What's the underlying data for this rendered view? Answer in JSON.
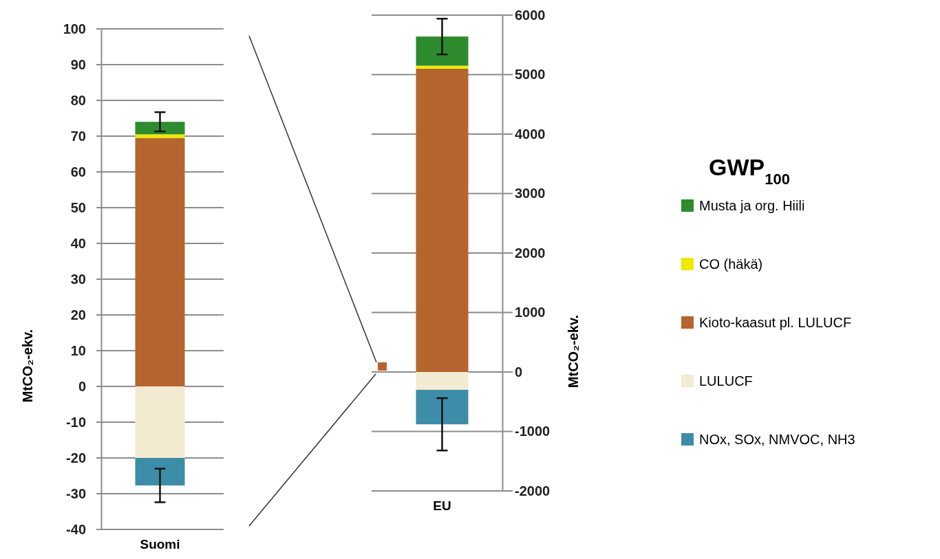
{
  "chart_data": [
    {
      "type": "bar",
      "stacked": true,
      "categories": [
        "Suomi"
      ],
      "ylabel": "MtCO₂-ekv.",
      "ylim": [
        -40,
        100
      ],
      "yticks": [
        -40,
        -30,
        -20,
        -10,
        0,
        10,
        20,
        30,
        40,
        50,
        60,
        70,
        80,
        90,
        100
      ],
      "grid": "y",
      "series": [
        {
          "color": "#b5652e",
          "values": [
            69.5
          ]
        },
        {
          "color": "#f0e800",
          "values": [
            1
          ]
        },
        {
          "color": "#2e8b2e",
          "values": [
            3.5
          ],
          "errors": [
            2.7
          ]
        },
        {
          "color": "#f3ead2",
          "values": [
            -20
          ]
        },
        {
          "color": "#3d8ca8",
          "values": [
            -7.7
          ],
          "errors": [
            4.7
          ]
        }
      ]
    },
    {
      "type": "bar",
      "stacked": true,
      "categories": [
        "EU"
      ],
      "y2label": "MtCO₂-ekv.",
      "y2lim": [
        -2000,
        6000
      ],
      "y2ticks": [
        -2000,
        -1000,
        0,
        1000,
        2000,
        3000,
        4000,
        5000,
        6000
      ],
      "grid": "y",
      "legend": "right",
      "legend_title": "GWP$_{100}$",
      "series": [
        {
          "name": "Kioto-kaasut pl. LULUCF",
          "color": "#b5652e",
          "values": [
            5100
          ],
          "axis": "y2"
        },
        {
          "name": "CO (häkä)",
          "color": "#f0e800",
          "values": [
            50
          ],
          "axis": "y2"
        },
        {
          "name": "Musta ja org. Hiili",
          "color": "#2e8b2e",
          "values": [
            490
          ],
          "errors": [
            300
          ],
          "axis": "y2"
        },
        {
          "name": "LULUCF",
          "color": "#f3ead2",
          "values": [
            -300
          ],
          "axis": "y2"
        },
        {
          "name": "NOx, SOx, NMVOC, NH3",
          "color": "#3d8ca8",
          "values": [
            -580
          ],
          "errors": [
            440
          ],
          "axis": "y2"
        }
      ]
    }
  ]
}
